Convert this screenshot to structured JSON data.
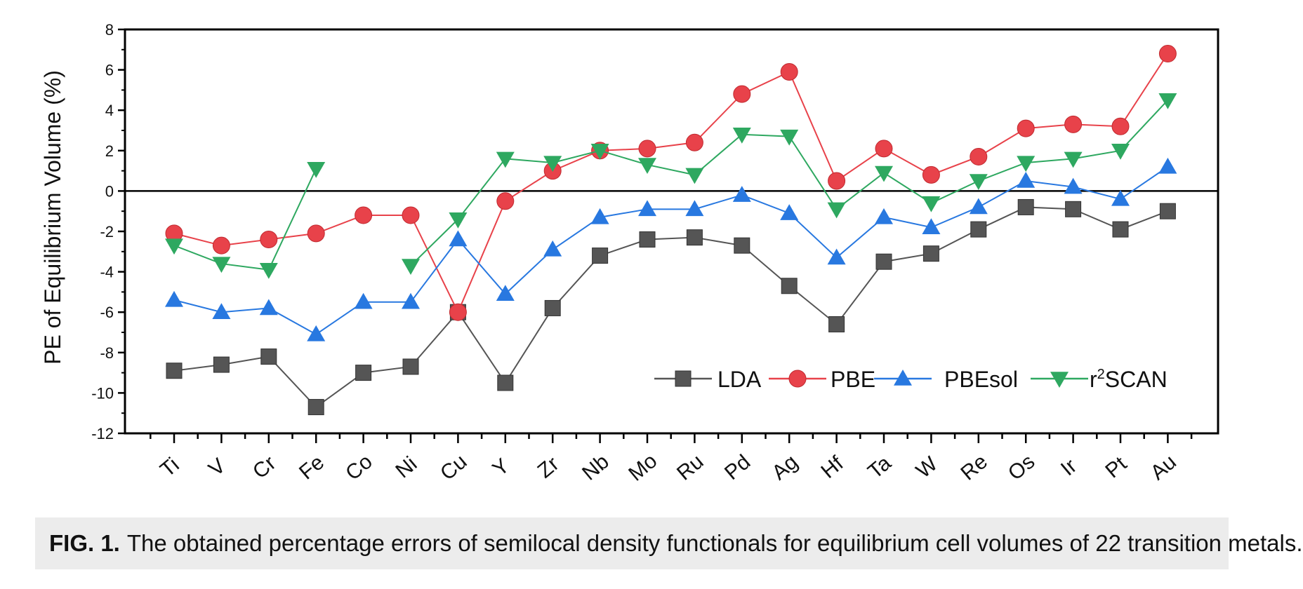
{
  "chart_data": {
    "type": "line",
    "ylabel": "PE of Equilibrium Volume (%)",
    "xlabel": "",
    "ylim": [
      -12,
      8
    ],
    "yticks": [
      -12,
      -10,
      -8,
      -6,
      -4,
      -2,
      0,
      2,
      4,
      6,
      8
    ],
    "grid": false,
    "reference_line": 0,
    "legend_position": "bottom-right",
    "categories": [
      "Ti",
      "V",
      "Cr",
      "Fe",
      "Co",
      "Ni",
      "Cu",
      "Y",
      "Zr",
      "Nb",
      "Mo",
      "Ru",
      "Pd",
      "Ag",
      "Hf",
      "Ta",
      "W",
      "Re",
      "Os",
      "Ir",
      "Pt",
      "Au"
    ],
    "series": [
      {
        "name": "LDA",
        "color": "#555555",
        "marker": "square",
        "values": [
          -8.9,
          -8.6,
          -8.2,
          -10.7,
          -9.0,
          -8.7,
          -6.0,
          -9.5,
          -5.8,
          -3.2,
          -2.4,
          -2.3,
          -2.7,
          -4.7,
          -6.6,
          -3.5,
          -3.1,
          -1.9,
          -0.8,
          -0.9,
          -1.9,
          -1.0
        ]
      },
      {
        "name": "PBE",
        "color": "#e8424a",
        "marker": "circle",
        "values": [
          -2.1,
          -2.7,
          -2.4,
          -2.1,
          -1.2,
          -1.2,
          -6.0,
          -0.5,
          1.0,
          2.0,
          2.1,
          2.4,
          4.8,
          5.9,
          0.5,
          2.1,
          0.8,
          1.7,
          3.1,
          3.3,
          3.2,
          6.8
        ]
      },
      {
        "name": "PBEsol",
        "color": "#2878e0",
        "marker": "triangle-up",
        "values": [
          -5.4,
          -6.0,
          -5.8,
          -7.1,
          -5.5,
          -5.5,
          -2.4,
          -5.1,
          -2.9,
          -1.3,
          -0.9,
          -0.9,
          -0.2,
          -1.1,
          -3.3,
          -1.3,
          -1.8,
          -0.8,
          0.5,
          0.2,
          -0.4,
          1.2
        ]
      },
      {
        "name": "r²SCAN",
        "legend_base": "r",
        "legend_sup": "2",
        "legend_rest": "SCAN",
        "color": "#2ea860",
        "marker": "triangle-down",
        "values": [
          -2.7,
          -3.6,
          -3.9,
          1.1,
          null,
          -3.7,
          -1.4,
          1.6,
          1.4,
          2.0,
          1.3,
          0.8,
          2.8,
          2.7,
          -0.9,
          0.9,
          -0.6,
          0.5,
          1.4,
          1.6,
          2.0,
          4.5
        ]
      }
    ]
  },
  "caption": {
    "fig_label": "FIG. 1.",
    "text": "The obtained percentage errors of semilocal density functionals for equilibrium cell volumes of 22 transition metals."
  }
}
